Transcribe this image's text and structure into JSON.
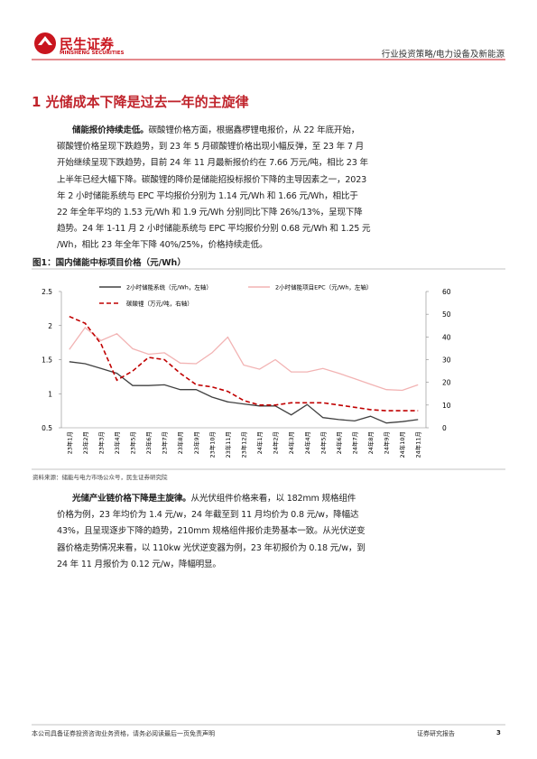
{
  "header": {
    "brand": "民生证券",
    "brand_en": "MINSHENG SECURITIES",
    "category": "行业投资策略/电力设备及新能源"
  },
  "heading": "1 光储成本下降是过去一年的主旋律",
  "paragraphs": [
    {
      "lead": "储能报价持续走低。",
      "lines": [
        "碳酸锂价格方面，根据鑫椤锂电报价，从 22 年底开始，",
        "碳酸锂价格呈现下跌趋势，到 23 年 5 月碳酸锂价格出现小幅反弹，至 23 年 7 月",
        "开始继续呈现下跌趋势，目前 24 年 11 月最新报价约在 7.66 万元/吨，相比 23 年",
        "上半年已经大幅下降。碳酸锂的降价是储能招投标报价下降的主导因素之一，2023",
        "年 2 小时储能系统与 EPC 平均报价分别为 1.14 元/Wh 和 1.66 元/Wh，相比于",
        "22 年全年平均的 1.53 元/Wh 和 1.9 元/Wh 分别同比下降 26%/13%，呈现下降",
        "趋势。24 年 1-11 月 2 小时储能系统与 EPC 平均报价分别 0.68 元/Wh 和 1.25 元",
        "/Wh，相比 23 年全年下降 40%/25%，价格持续走低。"
      ]
    },
    {
      "lead": "光储产业链价格下降是主旋律。",
      "lines": [
        "从光伏组件价格来看，以 182mm 规格组件",
        "价格为例，23 年均价为 1.4 元/w，24 年截至到 11 月均价为 0.8 元/w，降幅达",
        "43%，且呈现逐步下降的趋势，210mm 规格组件报价走势基本一致。从光伏逆变",
        "器价格走势情况来看，以 110kw 光伏逆变器为例，23 年初报价为 0.18 元/w，到",
        "24 年 11 月报价为 0.12 元/w，降幅明显。"
      ]
    }
  ],
  "figure": {
    "caption": "图1：国内储能中标项目价格（元/Wh）",
    "source": "资料来源：储能与电力市场公众号，民生证券研究院"
  },
  "chart_data": {
    "type": "line",
    "categories": [
      "23年1月",
      "23年2月",
      "23年3月",
      "23年4月",
      "23年5月",
      "23年6月",
      "23年7月",
      "23年8月",
      "23年9月",
      "23年10月",
      "23年11月",
      "23年12月",
      "24年1月",
      "24年2月",
      "24年3月",
      "24年4月",
      "24年5月",
      "24年6月",
      "24年7月",
      "24年8月",
      "24年9月",
      "24年10月",
      "24年11月"
    ],
    "series": [
      {
        "name": "2小时储能系统（元/Wh，左轴）",
        "color": "#404040",
        "dash": false,
        "values": [
          1.47,
          1.44,
          1.37,
          1.3,
          1.12,
          1.12,
          1.13,
          1.06,
          1.06,
          0.95,
          0.88,
          0.85,
          0.82,
          0.82,
          0.69,
          0.84,
          0.65,
          0.62,
          0.6,
          0.67,
          0.57,
          0.59,
          0.62
        ]
      },
      {
        "name": "2小时储能项目EPC（元/Wh，左轴）",
        "color": "#f2b3b3",
        "dash": false,
        "values": [
          1.65,
          1.97,
          1.78,
          1.88,
          1.66,
          1.58,
          1.6,
          1.45,
          1.44,
          1.6,
          1.83,
          1.42,
          1.36,
          1.5,
          1.32,
          1.32,
          1.37,
          1.3,
          1.22,
          1.14,
          1.06,
          1.05,
          1.13
        ]
      },
      {
        "name": "碳酸锂（万元/吨，右轴）",
        "color": "#c00000",
        "dash": true,
        "axis": "y2",
        "values": [
          49,
          46,
          37,
          21,
          25,
          31,
          30,
          24,
          19,
          18,
          16,
          12,
          10,
          10,
          11,
          11,
          11,
          10,
          9,
          8,
          7.5,
          7.5,
          7.5
        ]
      }
    ],
    "ylim": [
      0.5,
      2.5
    ],
    "yticks": [
      0.5,
      1,
      1.5,
      2,
      2.5
    ],
    "y2lim": [
      0,
      60
    ],
    "y2ticks": [
      0,
      10,
      20,
      30,
      40,
      50,
      60
    ]
  },
  "footer": {
    "disclaimer": "本公司具备证券投资咨询业务资格，请务必阅读最后一页免责声明",
    "report_type": "证券研究报告",
    "page": "3"
  }
}
